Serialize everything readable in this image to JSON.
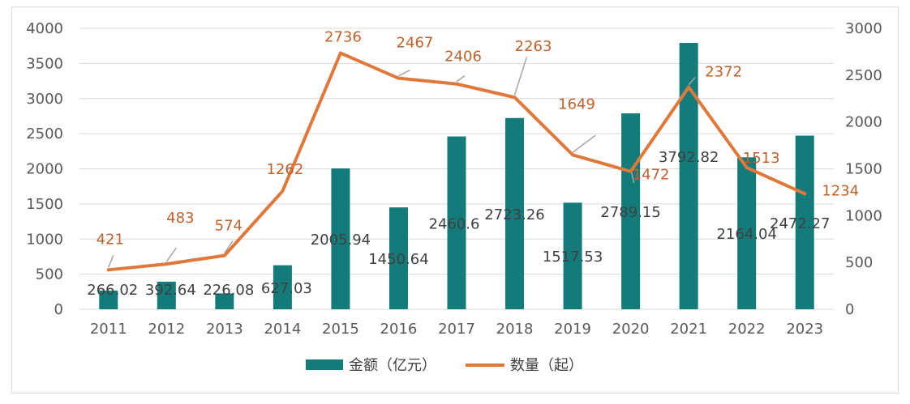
{
  "chart_data": {
    "type": "bar",
    "categories": [
      "2011",
      "2012",
      "2013",
      "2014",
      "2015",
      "2016",
      "2017",
      "2018",
      "2019",
      "2020",
      "2021",
      "2022",
      "2023"
    ],
    "series": [
      {
        "name": "金额（亿元）",
        "type": "bar",
        "axis": "left",
        "color": "#137c7a",
        "values": [
          266.02,
          392.64,
          226.08,
          627.03,
          2005.94,
          1450.64,
          2460.6,
          2723.26,
          1517.53,
          2789.15,
          3792.82,
          2164.04,
          2472.27
        ],
        "labels": [
          "266.02",
          "392.64",
          "226.08",
          "627.03",
          "2005.94",
          "1450.64",
          "2460.6",
          "2723.26",
          "1517.53",
          "2789.15",
          "3792.82",
          "2164.04",
          "2472.27"
        ]
      },
      {
        "name": "数量（起）",
        "type": "line",
        "axis": "right",
        "color": "#e0783a",
        "values": [
          421,
          483,
          574,
          1262,
          2736,
          2467,
          2406,
          2263,
          1649,
          1472,
          2372,
          1513,
          1234
        ],
        "labels": [
          "421",
          "483",
          "574",
          "1262",
          "2736",
          "2467",
          "2406",
          "2263",
          "1649",
          "1472",
          "2372",
          "1513",
          "1234"
        ]
      }
    ],
    "y_left": {
      "min": 0,
      "max": 4000,
      "ticks": [
        "0",
        "500",
        "1000",
        "1500",
        "2000",
        "2500",
        "3000",
        "3500",
        "4000"
      ]
    },
    "y_right": {
      "min": 0,
      "max": 3000,
      "ticks": [
        "0",
        "500",
        "1000",
        "1500",
        "2000",
        "2500",
        "3000"
      ]
    },
    "grid": true,
    "legend": "bottom-center",
    "label_color": "#c0612b",
    "leader_color": "#a6a6a6",
    "grid_color": "#d9d9d9"
  }
}
